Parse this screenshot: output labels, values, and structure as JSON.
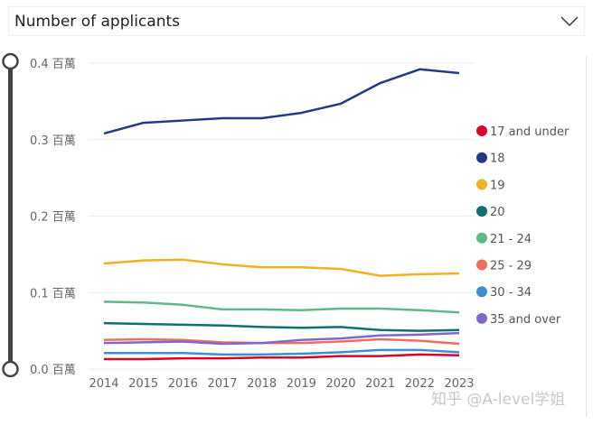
{
  "dropdown": {
    "label": "Number of applicants",
    "icon": "chevron-down-icon"
  },
  "watermark": "知乎 @A-level学姐",
  "chart_data": {
    "type": "line",
    "title": "",
    "xlabel": "",
    "ylabel": "",
    "x": [
      2014,
      2015,
      2016,
      2017,
      2018,
      2019,
      2020,
      2021,
      2022,
      2023
    ],
    "ylim": [
      0,
      0.4
    ],
    "yticks": [
      0,
      0.1,
      0.2,
      0.3,
      0.4
    ],
    "ytick_labels": [
      "0.0 百萬",
      "0.1 百萬",
      "0.2 百萬",
      "0.3 百萬",
      "0.4 百萬"
    ],
    "grid": true,
    "legend_position": "right",
    "series": [
      {
        "name": "17 and under",
        "color": "#d9032b",
        "values": [
          0.013,
          0.013,
          0.014,
          0.014,
          0.015,
          0.015,
          0.017,
          0.017,
          0.019,
          0.018
        ]
      },
      {
        "name": "18",
        "color": "#243a87",
        "values": [
          0.308,
          0.322,
          0.325,
          0.328,
          0.328,
          0.335,
          0.347,
          0.374,
          0.392,
          0.387
        ]
      },
      {
        "name": "19",
        "color": "#f2b022",
        "values": [
          0.138,
          0.142,
          0.143,
          0.137,
          0.133,
          0.133,
          0.131,
          0.122,
          0.124,
          0.125
        ]
      },
      {
        "name": "20",
        "color": "#127070",
        "values": [
          0.06,
          0.059,
          0.058,
          0.057,
          0.055,
          0.054,
          0.055,
          0.051,
          0.05,
          0.051
        ]
      },
      {
        "name": "21 - 24",
        "color": "#5fb88a",
        "values": [
          0.088,
          0.087,
          0.084,
          0.078,
          0.078,
          0.077,
          0.079,
          0.079,
          0.077,
          0.074
        ]
      },
      {
        "name": "25 - 29",
        "color": "#ef6f5e",
        "values": [
          0.038,
          0.039,
          0.038,
          0.035,
          0.034,
          0.034,
          0.036,
          0.039,
          0.037,
          0.033
        ]
      },
      {
        "name": "30 - 34",
        "color": "#3c8fd6",
        "values": [
          0.021,
          0.021,
          0.021,
          0.019,
          0.019,
          0.02,
          0.022,
          0.025,
          0.025,
          0.022
        ]
      },
      {
        "name": "35 and over",
        "color": "#7f68cc",
        "values": [
          0.034,
          0.035,
          0.036,
          0.033,
          0.034,
          0.038,
          0.04,
          0.044,
          0.045,
          0.047
        ]
      }
    ]
  }
}
